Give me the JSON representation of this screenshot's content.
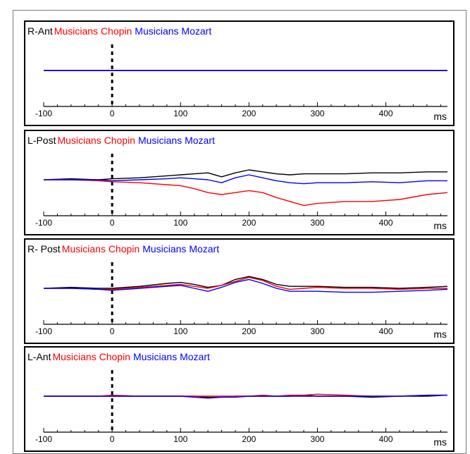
{
  "chart_data": [
    {
      "type": "line",
      "title_prefix": "R-Ant",
      "legend": [
        {
          "text": "Musicians Chopin",
          "color": "#ff0000"
        },
        {
          "text": "Musicians Mozart",
          "color": "#0000ff"
        }
      ],
      "xlabel": "ms",
      "xlim": [
        -100,
        490
      ],
      "xticks": [
        -100,
        0,
        100,
        200,
        300,
        400
      ],
      "ylim": [
        -1.0,
        1.0
      ],
      "x": [
        -100,
        -60,
        -20,
        0,
        40,
        80,
        100,
        120,
        140,
        160,
        180,
        200,
        220,
        240,
        260,
        280,
        300,
        340,
        380,
        420,
        460,
        490
      ],
      "series": [
        {
          "color": "#000000",
          "values": [
            0.0,
            0.0,
            0.0,
            0.0,
            0.0,
            0.0,
            0.0,
            0.0,
            0.0,
            0.0,
            0.0,
            0.0,
            0.0,
            0.0,
            0.0,
            0.0,
            0.0,
            0.0,
            0.0,
            0.0,
            0.0,
            0.0
          ]
        },
        {
          "color": "#ff0000",
          "values": [
            0.0,
            0.0,
            0.0,
            0.0,
            0.0,
            0.0,
            0.0,
            0.0,
            0.0,
            0.0,
            0.0,
            0.0,
            0.0,
            0.0,
            0.0,
            0.0,
            0.0,
            0.0,
            0.0,
            0.0,
            0.0,
            0.0
          ]
        },
        {
          "color": "#0000ff",
          "values": [
            0.0,
            0.0,
            0.0,
            0.0,
            0.0,
            0.0,
            0.0,
            0.0,
            0.0,
            0.0,
            0.0,
            0.0,
            0.0,
            0.0,
            0.0,
            0.0,
            0.0,
            0.0,
            0.0,
            0.0,
            0.0,
            0.0
          ]
        }
      ]
    },
    {
      "type": "line",
      "title_prefix": "L-Post",
      "legend": [
        {
          "text": "Musicians Chopin",
          "color": "#ff0000"
        },
        {
          "text": "Musicians Mozart",
          "color": "#0000ff"
        }
      ],
      "xlabel": "ms",
      "xlim": [
        -100,
        490
      ],
      "xticks": [
        -100,
        0,
        100,
        200,
        300,
        400
      ],
      "ylim": [
        -1.0,
        1.0
      ],
      "x": [
        -100,
        -60,
        -20,
        0,
        40,
        80,
        100,
        120,
        140,
        160,
        180,
        200,
        220,
        240,
        260,
        280,
        300,
        340,
        380,
        420,
        460,
        490
      ],
      "series": [
        {
          "color": "#000000",
          "values": [
            0.0,
            0.02,
            0.0,
            0.02,
            0.04,
            0.08,
            0.1,
            0.12,
            0.14,
            0.06,
            0.14,
            0.2,
            0.16,
            0.12,
            0.1,
            0.12,
            0.12,
            0.12,
            0.14,
            0.14,
            0.16,
            0.16
          ]
        },
        {
          "color": "#ff0000",
          "values": [
            0.0,
            0.0,
            -0.02,
            -0.04,
            -0.06,
            -0.1,
            -0.12,
            -0.18,
            -0.26,
            -0.3,
            -0.26,
            -0.22,
            -0.26,
            -0.36,
            -0.44,
            -0.52,
            -0.48,
            -0.44,
            -0.44,
            -0.4,
            -0.3,
            -0.26
          ]
        },
        {
          "color": "#0000ff",
          "values": [
            0.0,
            0.0,
            0.0,
            -0.02,
            0.0,
            0.02,
            0.04,
            0.02,
            0.0,
            -0.06,
            0.04,
            0.1,
            0.04,
            -0.02,
            -0.06,
            -0.08,
            -0.06,
            -0.06,
            -0.04,
            -0.06,
            -0.02,
            -0.02
          ]
        }
      ]
    },
    {
      "type": "line",
      "title_prefix": "R- Post",
      "legend": [
        {
          "text": "Musicians Chopin",
          "color": "#ff0000"
        },
        {
          "text": "Musicians Mozart",
          "color": "#0000ff"
        }
      ],
      "xlabel": "ms",
      "xlim": [
        -100,
        490
      ],
      "xticks": [
        -100,
        0,
        100,
        200,
        300,
        400
      ],
      "ylim": [
        -1.0,
        1.0
      ],
      "x": [
        -100,
        -60,
        -20,
        0,
        40,
        80,
        100,
        120,
        140,
        160,
        180,
        200,
        220,
        240,
        260,
        280,
        300,
        340,
        380,
        420,
        460,
        490
      ],
      "series": [
        {
          "color": "#000000",
          "values": [
            0.0,
            0.02,
            0.0,
            0.0,
            0.04,
            0.1,
            0.12,
            0.08,
            0.02,
            0.06,
            0.18,
            0.24,
            0.18,
            0.08,
            0.04,
            0.04,
            0.04,
            0.02,
            0.02,
            0.0,
            0.02,
            0.04
          ]
        },
        {
          "color": "#ff0000",
          "values": [
            0.0,
            0.0,
            -0.02,
            -0.02,
            0.02,
            0.06,
            0.08,
            0.04,
            0.0,
            0.06,
            0.14,
            0.22,
            0.16,
            0.04,
            -0.02,
            0.0,
            0.02,
            0.0,
            0.0,
            -0.02,
            0.0,
            0.0
          ]
        },
        {
          "color": "#0000ff",
          "values": [
            0.0,
            0.0,
            -0.02,
            -0.04,
            0.0,
            0.04,
            0.06,
            0.0,
            -0.06,
            0.02,
            0.12,
            0.18,
            0.1,
            0.0,
            -0.06,
            -0.06,
            -0.06,
            -0.08,
            -0.08,
            -0.06,
            -0.04,
            -0.02
          ]
        }
      ]
    },
    {
      "type": "line",
      "title_prefix": "L-Ant",
      "legend": [
        {
          "text": "Musicians Chopin",
          "color": "#ff0000"
        },
        {
          "text": "Musicians Mozart",
          "color": "#0000ff"
        }
      ],
      "xlabel": "ms",
      "xlim": [
        -100,
        490
      ],
      "xticks": [
        -100,
        0,
        100,
        200,
        300,
        400
      ],
      "ylim": [
        -1.0,
        1.0
      ],
      "x": [
        -100,
        -60,
        -20,
        0,
        40,
        80,
        100,
        120,
        140,
        160,
        180,
        200,
        220,
        240,
        260,
        280,
        300,
        340,
        380,
        420,
        460,
        490
      ],
      "series": [
        {
          "color": "#000000",
          "values": [
            0.0,
            0.0,
            0.0,
            0.0,
            0.0,
            0.0,
            0.0,
            0.0,
            -0.02,
            -0.02,
            0.0,
            0.0,
            0.0,
            0.0,
            0.0,
            0.02,
            0.0,
            0.0,
            -0.02,
            0.0,
            0.0,
            0.02
          ]
        },
        {
          "color": "#ff0000",
          "values": [
            0.0,
            0.0,
            0.0,
            0.02,
            0.0,
            0.0,
            0.0,
            0.0,
            0.0,
            0.0,
            0.0,
            0.0,
            0.02,
            0.0,
            0.02,
            0.02,
            0.04,
            0.02,
            0.0,
            0.0,
            0.02,
            0.02
          ]
        },
        {
          "color": "#0000ff",
          "values": [
            0.0,
            0.0,
            0.0,
            0.0,
            0.0,
            0.0,
            0.0,
            -0.02,
            -0.04,
            -0.02,
            -0.02,
            0.0,
            0.0,
            0.0,
            0.0,
            0.0,
            0.0,
            0.0,
            0.0,
            0.0,
            0.02,
            0.02
          ]
        }
      ]
    }
  ]
}
